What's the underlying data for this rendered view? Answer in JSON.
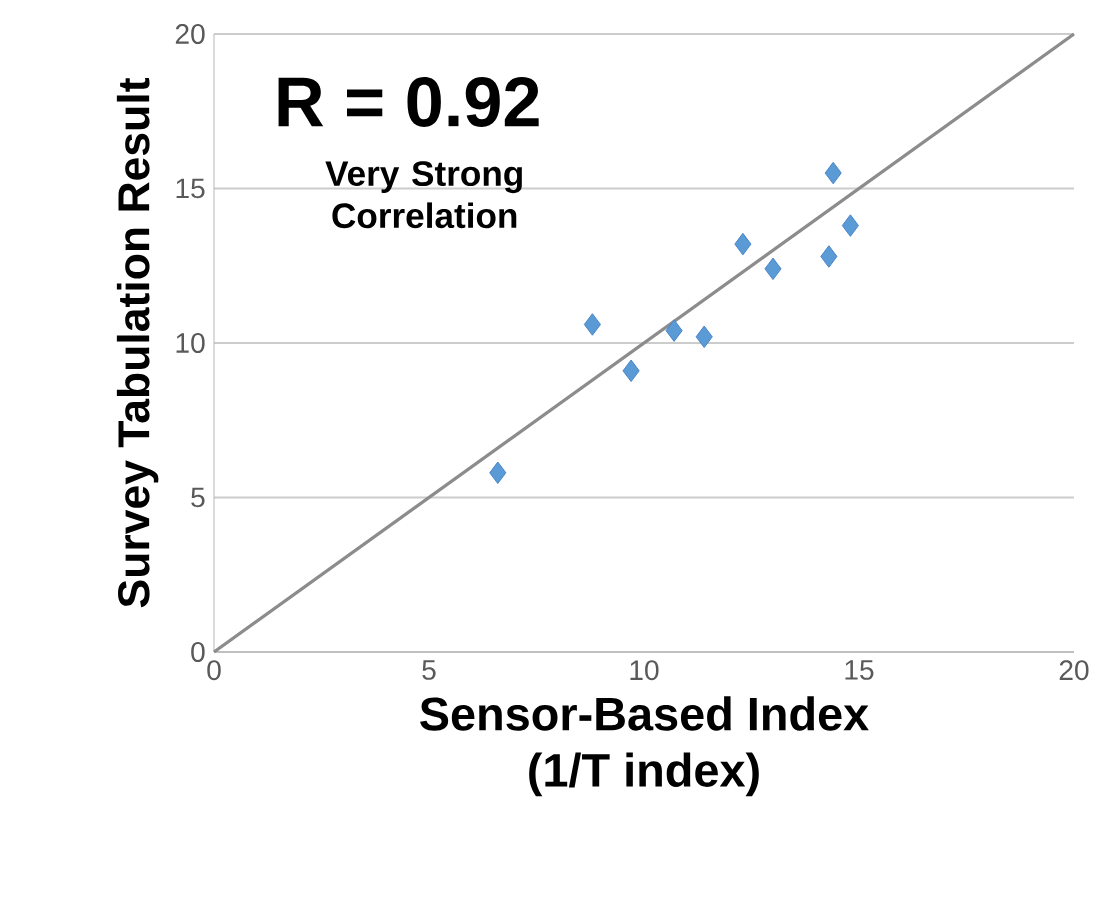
{
  "chart_data": {
    "type": "scatter",
    "xlabel": "Sensor-Based Index\n(1/T index)",
    "ylabel": "Survey Tabulation Result",
    "series": [
      {
        "color": "#5b9bd5",
        "marker": "diamond",
        "x": [
          6.6,
          8.8,
          9.7,
          10.7,
          11.4,
          12.3,
          13.0,
          14.3,
          14.4,
          14.8
        ],
        "values": [
          5.8,
          10.6,
          9.1,
          10.4,
          10.2,
          13.2,
          12.4,
          12.8,
          15.5,
          13.8
        ]
      },
      {
        "type": "line",
        "color": "#8c8c8c",
        "marker": "none",
        "x": [
          0,
          20
        ],
        "values": [
          0,
          20
        ]
      }
    ],
    "annotations": [
      "R = 0.92",
      "Very Strong Correlation"
    ],
    "xlim": [
      0,
      20
    ],
    "ylim": [
      0,
      20
    ],
    "xticks": [
      0,
      5,
      10,
      15,
      20
    ],
    "yticks": [
      0,
      5,
      10,
      15,
      20
    ],
    "grid": "y"
  }
}
